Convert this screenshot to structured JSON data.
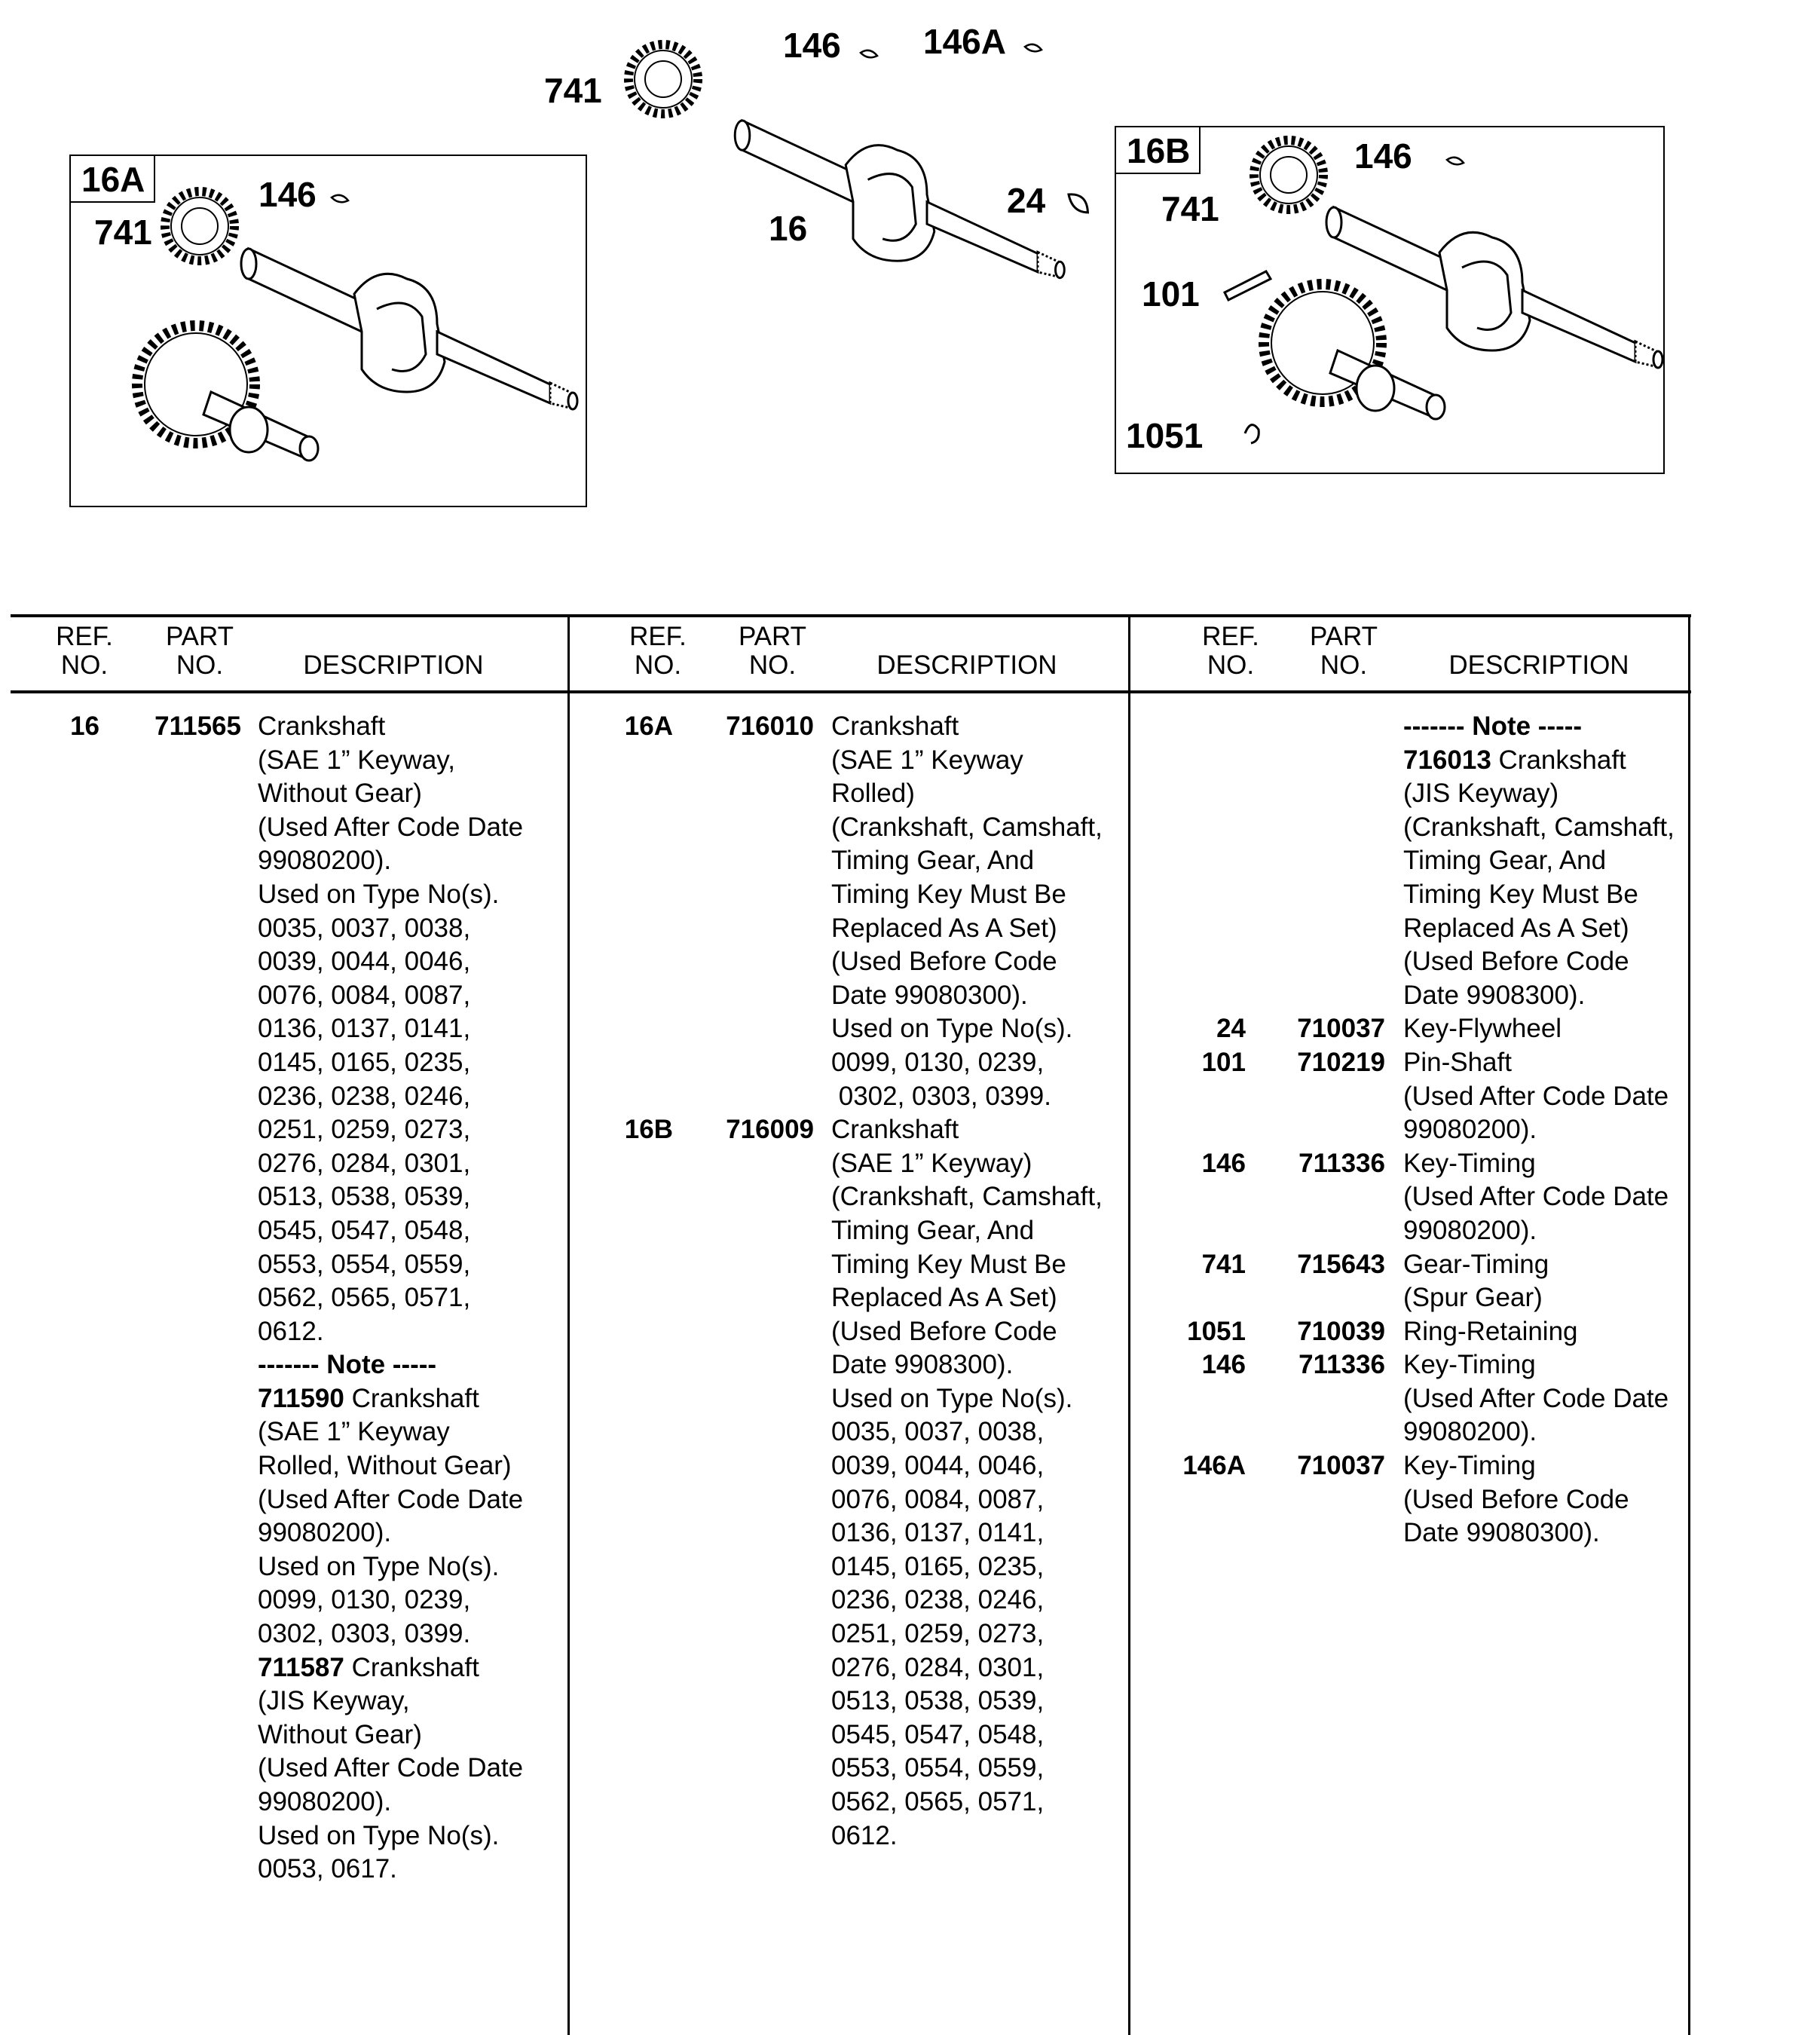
{
  "diagram": {
    "callouts": {
      "main_741": "741",
      "main_146": "146",
      "main_146A": "146A",
      "main_16": "16",
      "main_24": "24",
      "a_146": "146",
      "a_741": "741",
      "b_146": "146",
      "b_741": "741",
      "b_101": "101",
      "b_1051": "1051"
    },
    "box_16A_label": "16A",
    "box_16B_label": "16B"
  },
  "table": {
    "headers": {
      "ref": [
        "REF.",
        "NO."
      ],
      "part": [
        "PART",
        "NO."
      ],
      "desc": "DESCRIPTION"
    },
    "columns": [
      {
        "entries": [
          {
            "ref": "16",
            "part": "711565",
            "lines": [
              {
                "t": "Crankshaft"
              },
              {
                "t": "(SAE 1” Keyway,"
              },
              {
                "t": "Without Gear)"
              },
              {
                "t": "(Used After Code Date"
              },
              {
                "t": "99080200)."
              },
              {
                "t": "Used on Type No(s)."
              },
              {
                "t": "0035, 0037, 0038,"
              },
              {
                "t": "0039, 0044, 0046,"
              },
              {
                "t": "0076, 0084, 0087,"
              },
              {
                "t": "0136, 0137, 0141,"
              },
              {
                "t": "0145, 0165, 0235,"
              },
              {
                "t": "0236, 0238, 0246,"
              },
              {
                "t": "0251, 0259, 0273,"
              },
              {
                "t": "0276, 0284, 0301,"
              },
              {
                "t": "0513, 0538, 0539,"
              },
              {
                "t": "0545, 0547, 0548,"
              },
              {
                "t": "0553, 0554, 0559,"
              },
              {
                "t": "0562, 0565, 0571,"
              },
              {
                "t": "0612."
              },
              {
                "b": "------- Note -----",
                "t": ""
              },
              {
                "b": "711590",
                "t": " Crankshaft"
              },
              {
                "t": "(SAE 1” Keyway"
              },
              {
                "t": "Rolled, Without Gear)"
              },
              {
                "t": "(Used After Code Date"
              },
              {
                "t": "99080200)."
              },
              {
                "t": "Used on Type No(s)."
              },
              {
                "t": "0099, 0130, 0239,"
              },
              {
                "t": "0302, 0303, 0399."
              },
              {
                "b": "711587",
                "t": " Crankshaft"
              },
              {
                "t": "(JIS Keyway,"
              },
              {
                "t": "Without Gear)"
              },
              {
                "t": "(Used After Code Date"
              },
              {
                "t": "99080200)."
              },
              {
                "t": "Used on Type No(s)."
              },
              {
                "t": "0053, 0617."
              }
            ]
          }
        ]
      },
      {
        "entries": [
          {
            "ref": "16A",
            "part": "716010",
            "lines": [
              {
                "t": "Crankshaft"
              },
              {
                "t": "(SAE 1” Keyway"
              },
              {
                "t": "Rolled)"
              },
              {
                "t": "(Crankshaft, Camshaft,"
              },
              {
                "t": "Timing Gear, And"
              },
              {
                "t": "Timing Key Must Be"
              },
              {
                "t": "Replaced As A Set)"
              },
              {
                "t": "(Used Before Code"
              },
              {
                "t": "Date 99080300)."
              },
              {
                "t": "Used on Type No(s)."
              },
              {
                "t": "0099, 0130, 0239,"
              },
              {
                "t": " 0302, 0303, 0399."
              }
            ]
          },
          {
            "ref": "16B",
            "part": "716009",
            "lines": [
              {
                "t": "Crankshaft"
              },
              {
                "t": "(SAE 1” Keyway)"
              },
              {
                "t": "(Crankshaft, Camshaft,"
              },
              {
                "t": "Timing Gear, And"
              },
              {
                "t": "Timing Key Must Be"
              },
              {
                "t": "Replaced As A Set)"
              },
              {
                "t": "(Used Before Code"
              },
              {
                "t": "Date 9908300)."
              },
              {
                "t": "Used on Type No(s)."
              },
              {
                "t": "0035, 0037, 0038,"
              },
              {
                "t": "0039, 0044, 0046,"
              },
              {
                "t": "0076, 0084, 0087,"
              },
              {
                "t": "0136, 0137, 0141,"
              },
              {
                "t": "0145, 0165, 0235,"
              },
              {
                "t": "0236, 0238, 0246,"
              },
              {
                "t": "0251, 0259, 0273,"
              },
              {
                "t": "0276, 0284, 0301,"
              },
              {
                "t": "0513, 0538, 0539,"
              },
              {
                "t": "0545, 0547, 0548,"
              },
              {
                "t": "0553, 0554, 0559,"
              },
              {
                "t": "0562, 0565, 0571,"
              },
              {
                "t": "0612."
              }
            ]
          }
        ]
      },
      {
        "entries": [
          {
            "ref": "",
            "part": "",
            "lines": [
              {
                "b": "------- Note -----",
                "t": ""
              },
              {
                "b": "716013",
                "t": " Crankshaft"
              },
              {
                "t": "(JIS Keyway)"
              },
              {
                "t": "(Crankshaft, Camshaft,"
              },
              {
                "t": "Timing Gear, And"
              },
              {
                "t": "Timing Key Must Be"
              },
              {
                "t": "Replaced As A Set)"
              },
              {
                "t": "(Used Before Code"
              },
              {
                "t": "Date 9908300)."
              }
            ]
          },
          {
            "ref": "24",
            "part": "710037",
            "lines": [
              {
                "t": "Key-Flywheel"
              }
            ]
          },
          {
            "ref": "101",
            "part": "710219",
            "lines": [
              {
                "t": "Pin-Shaft"
              },
              {
                "t": "(Used After Code Date"
              },
              {
                "t": "99080200)."
              }
            ]
          },
          {
            "ref": "146",
            "part": "711336",
            "lines": [
              {
                "t": "Key-Timing"
              },
              {
                "t": "(Used After Code Date"
              },
              {
                "t": "99080200)."
              }
            ]
          },
          {
            "ref": "741",
            "part": "715643",
            "lines": [
              {
                "t": "Gear-Timing"
              },
              {
                "t": "(Spur Gear)"
              }
            ]
          },
          {
            "ref": "1051",
            "part": "710039",
            "lines": [
              {
                "t": "Ring-Retaining"
              }
            ]
          },
          {
            "ref": "146",
            "part": "711336",
            "lines": [
              {
                "t": "Key-Timing"
              },
              {
                "t": "(Used After Code Date"
              },
              {
                "t": "99080200)."
              }
            ]
          },
          {
            "ref": "146A",
            "part": "710037",
            "lines": [
              {
                "t": "Key-Timing"
              },
              {
                "t": "(Used Before Code"
              },
              {
                "t": "Date 99080300)."
              }
            ]
          }
        ]
      }
    ]
  }
}
